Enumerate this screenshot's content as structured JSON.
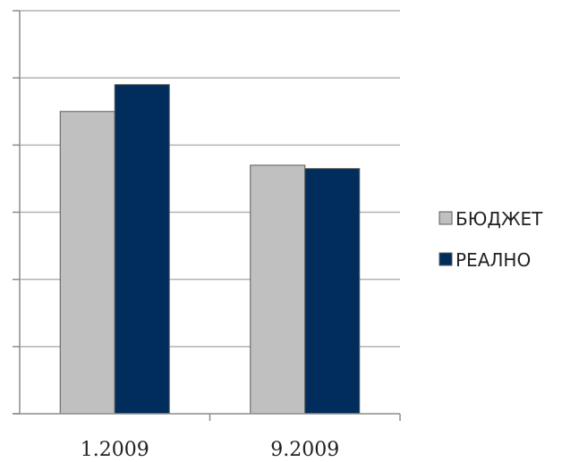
{
  "chart_data": {
    "type": "bar",
    "categories": [
      "1.2009",
      "9.2009"
    ],
    "series": [
      {
        "name": "БЮДЖЕТ",
        "values": [
          4.5,
          3.7
        ],
        "color": "#c0c0c0"
      },
      {
        "name": "РЕАЛНО",
        "values": [
          4.9,
          3.65
        ],
        "color": "#002d5c"
      }
    ],
    "ylim": [
      0,
      6
    ],
    "grid": true,
    "legend_position": "right",
    "title": "",
    "xlabel": "",
    "ylabel": ""
  }
}
